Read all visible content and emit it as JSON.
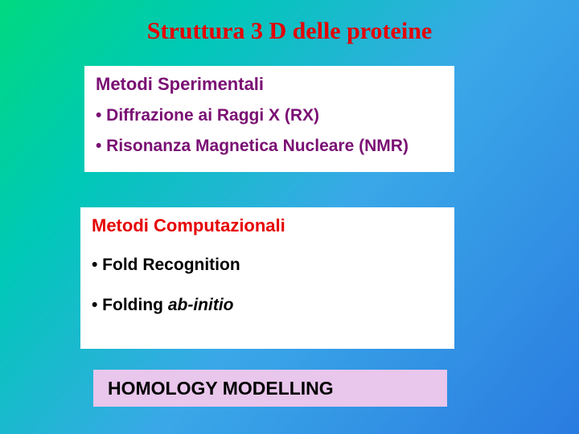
{
  "title": "Struttura 3 D delle proteine",
  "panel1": {
    "heading": "Metodi Sperimentali",
    "items": [
      "• Diffrazione ai Raggi X (RX)",
      "• Risonanza Magnetica Nucleare (NMR)"
    ]
  },
  "panel2": {
    "heading": "Metodi Computazionali",
    "items": [
      {
        "prefix": "• Fold Recognition",
        "italic": ""
      },
      {
        "prefix": "• Folding ",
        "italic": "ab-initio"
      }
    ]
  },
  "panel3": {
    "text": "HOMOLOGY MODELLING"
  },
  "colors": {
    "title_color": "#e60000",
    "panel1_text_color": "#7a0f73",
    "panel2_heading_color": "#e60000",
    "panel2_item_color": "#000000",
    "panel1_bg": "#ffffff",
    "panel2_bg": "#ffffff",
    "panel3_bg": "#e9c6ec",
    "bg_gradient": [
      "#00d980",
      "#00c8b8",
      "#3aa8e8",
      "#2a7ce0"
    ]
  },
  "layout": {
    "slide_width": 720,
    "slide_height": 540,
    "title_fontsize": 30,
    "heading_fontsize": 22,
    "item_fontsize": 21,
    "panel3_fontsize": 23
  }
}
